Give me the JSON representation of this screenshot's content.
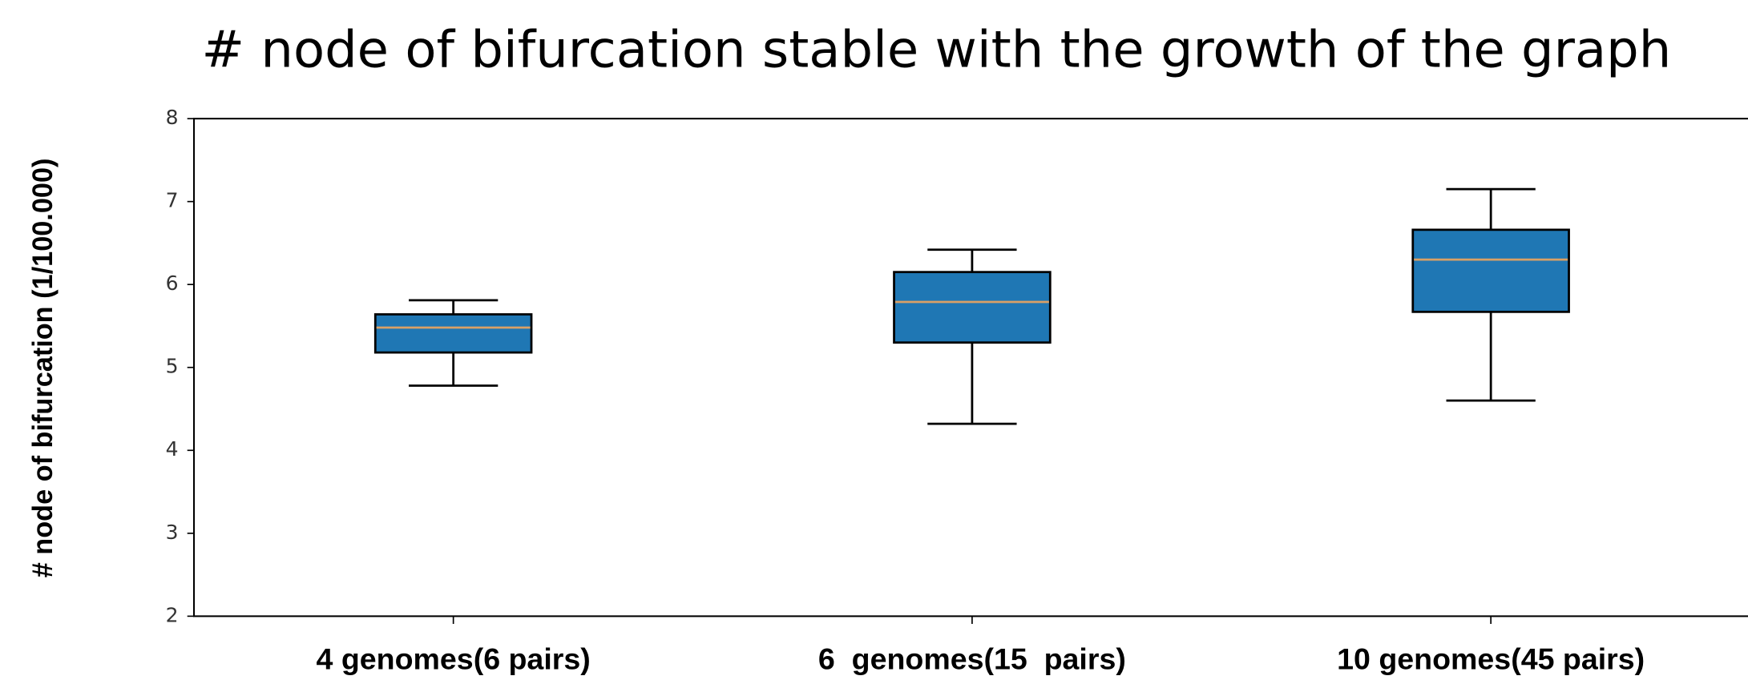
{
  "chart_data": {
    "type": "box",
    "title": "# node of bifurcation stable with the growth of the graph",
    "ylabel": "# node of bifurcation (1/100.000)",
    "categories": [
      "4 genomes(6 pairs)",
      "6  genomes(15  pairs)",
      "10 genomes(45 pairs)"
    ],
    "boxes": [
      {
        "whislo": 4.78,
        "q1": 5.18,
        "med": 5.48,
        "q3": 5.64,
        "whishi": 5.81
      },
      {
        "whislo": 4.32,
        "q1": 5.3,
        "med": 5.79,
        "q3": 6.15,
        "whishi": 6.42
      },
      {
        "whislo": 4.6,
        "q1": 5.67,
        "med": 6.3,
        "q3": 6.66,
        "whishi": 7.15
      }
    ],
    "color": "#1f77b4",
    "median_color": "#d9a066",
    "ylim": [
      2,
      8
    ],
    "yticks": [
      2,
      3,
      4,
      5,
      6,
      7,
      8
    ],
    "grid": false
  }
}
